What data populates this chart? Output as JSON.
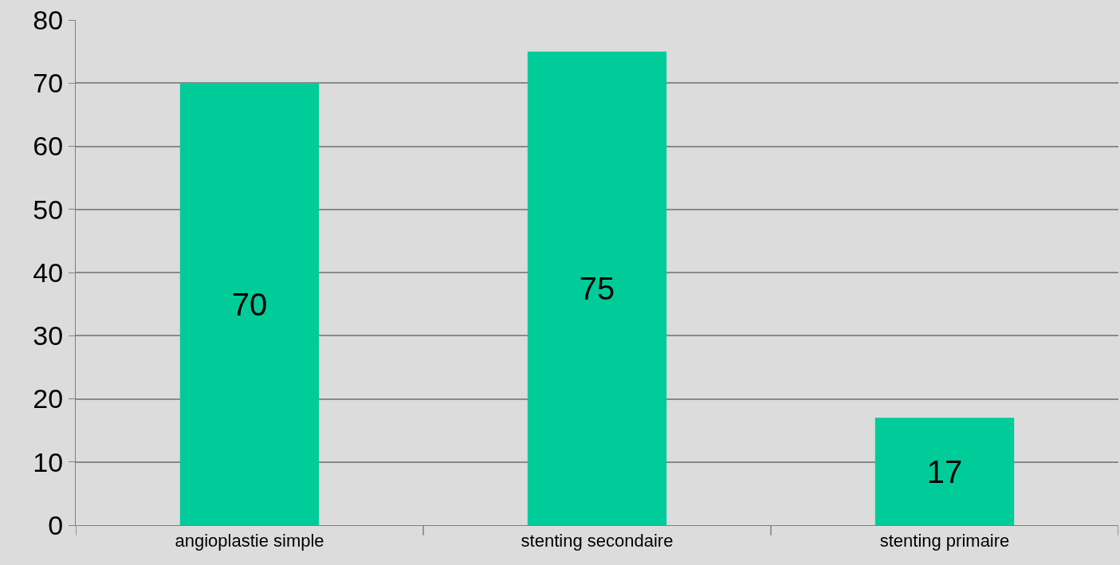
{
  "chart_data": {
    "type": "bar",
    "categories": [
      "angioplastie simple",
      "stenting secondaire",
      "stenting primaire"
    ],
    "values": [
      70,
      75,
      17
    ],
    "color": "#00cc99",
    "ylim": [
      0,
      80
    ],
    "yticks": [
      0,
      10,
      20,
      30,
      40,
      50,
      60,
      70,
      80
    ],
    "grid": "y",
    "data_labels": true,
    "legend": false
  }
}
